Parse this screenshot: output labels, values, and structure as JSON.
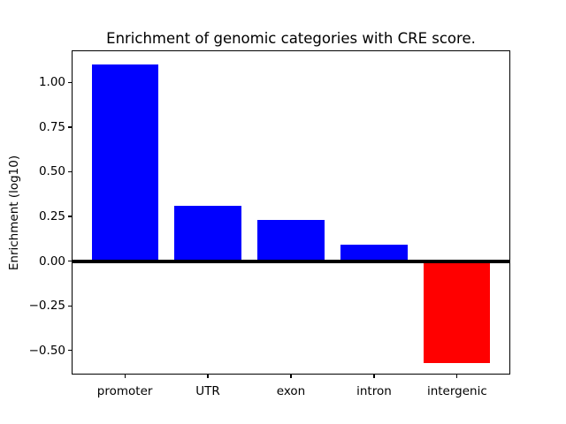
{
  "chart_data": {
    "type": "bar",
    "title": "Enrichment of genomic categories with CRE score.",
    "ylabel": "Enrichment (log10)",
    "xlabel": "",
    "categories": [
      "promoter",
      "UTR",
      "exon",
      "intron",
      "intergenic"
    ],
    "values": [
      1.1,
      0.31,
      0.23,
      0.09,
      -0.57
    ],
    "bar_colors": [
      "#0000ff",
      "#0000ff",
      "#0000ff",
      "#0000ff",
      "#ff0000"
    ],
    "positive_color": "#0000ff",
    "negative_color": "#ff0000",
    "bar_width": 0.8,
    "ylim": [
      -0.635,
      1.18
    ],
    "xlim": [
      -0.64,
      4.64
    ],
    "yticks": [
      {
        "value": 1.0,
        "label": "1.00"
      },
      {
        "value": 0.75,
        "label": "0.75"
      },
      {
        "value": 0.5,
        "label": "0.50"
      },
      {
        "value": 0.25,
        "label": "0.25"
      },
      {
        "value": 0.0,
        "label": "0.00"
      },
      {
        "value": -0.25,
        "label": "−0.25"
      },
      {
        "value": -0.5,
        "label": "−0.50"
      }
    ],
    "grid": false,
    "legend": false,
    "zero_line_color": "#000000",
    "axis_color": "#000000",
    "background_color": "#ffffff"
  }
}
